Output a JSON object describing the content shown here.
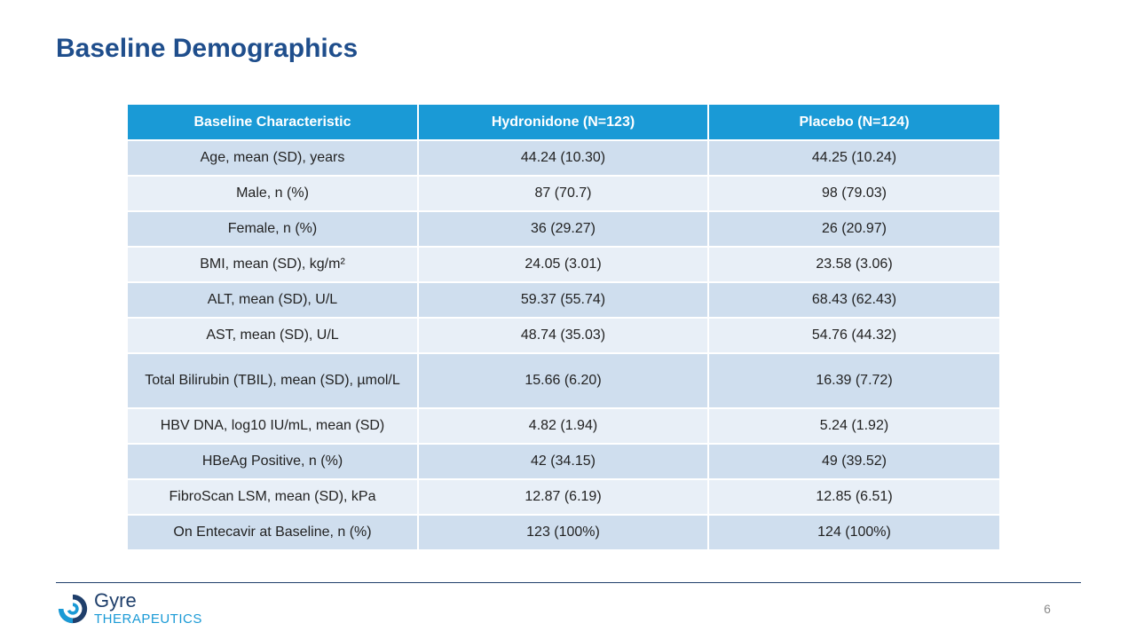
{
  "slide": {
    "title": "Baseline Demographics",
    "page_number": "6"
  },
  "table": {
    "headers": [
      "Baseline Characteristic",
      "Hydronidone (N=123)",
      "Placebo (N=124)"
    ],
    "rows": [
      [
        "Age, mean (SD), years",
        "44.24 (10.30)",
        "44.25 (10.24)"
      ],
      [
        "Male, n (%)",
        "87 (70.7)",
        "98 (79.03)"
      ],
      [
        "Female, n (%)",
        "36 (29.27)",
        "26 (20.97)"
      ],
      [
        "BMI, mean (SD), kg/m²",
        "24.05 (3.01)",
        "23.58 (3.06)"
      ],
      [
        "ALT, mean (SD), U/L",
        "59.37 (55.74)",
        "68.43 (62.43)"
      ],
      [
        "AST, mean (SD), U/L",
        "48.74 (35.03)",
        "54.76 (44.32)"
      ],
      [
        "Total Bilirubin (TBIL), mean (SD), µmol/L",
        "15.66 (6.20)",
        "16.39 (7.72)"
      ],
      [
        "HBV DNA, log10 IU/mL, mean (SD)",
        "4.82 (1.94)",
        "5.24 (1.92)"
      ],
      [
        "HBeAg Positive, n (%)",
        "42 (34.15)",
        "49 (39.52)"
      ],
      [
        "FibroScan LSM, mean (SD), kPa",
        "12.87 (6.19)",
        "12.85 (6.51)"
      ],
      [
        "On Entecavir at Baseline, n (%)",
        "123 (100%)",
        "124 (100%)"
      ]
    ]
  },
  "footer": {
    "logo_name": "Gyre",
    "logo_subtitle": "THERAPEUTICS",
    "logo_icon": "gyre-swirl-icon"
  },
  "colors": {
    "title": "#1f4e8c",
    "header_bg": "#1a9ad6",
    "row_dark": "#cfdeee",
    "row_light": "#e8eff7",
    "logo_navy": "#1f3f6b",
    "logo_blue": "#1a9ad6"
  }
}
